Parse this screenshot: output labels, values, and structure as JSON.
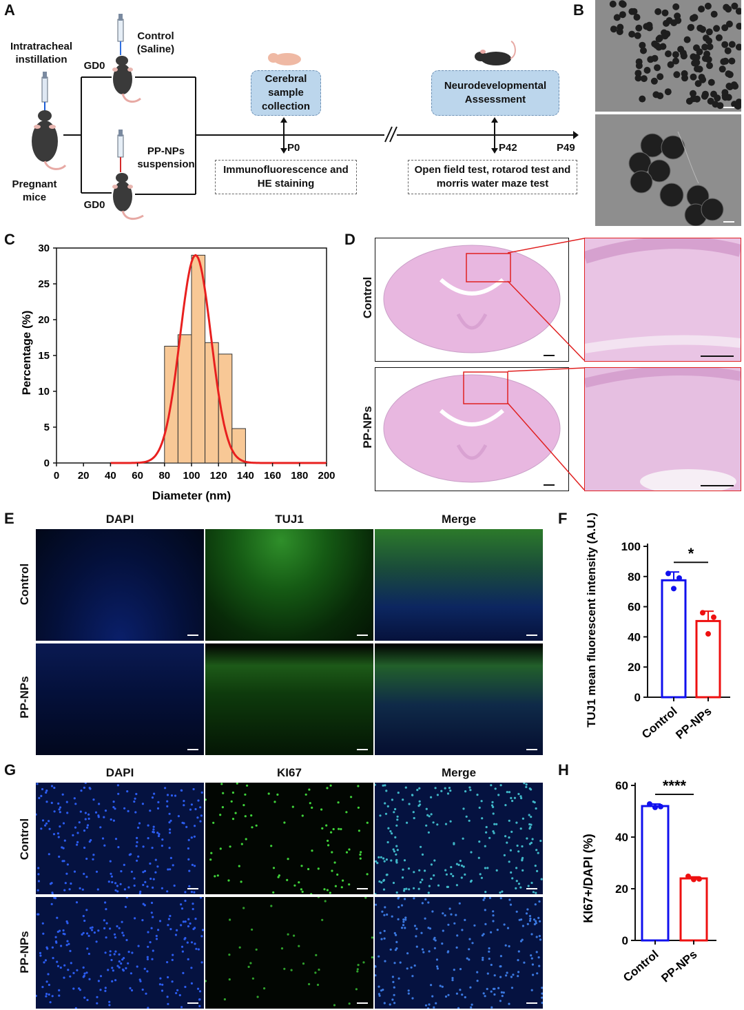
{
  "panels": {
    "A": "A",
    "B": "B",
    "C": "C",
    "D": "D",
    "E": "E",
    "F": "F",
    "G": "G",
    "H": "H"
  },
  "panelA": {
    "intratracheal": "Intratracheal instillation",
    "pregnant": "Pregnant mice",
    "gd0_top": "GD0",
    "gd0_bottom": "GD0",
    "control": "Control (Saline)",
    "ppnps": "PP-NPs suspension",
    "cerebral": "Cerebral sample collection",
    "neuro": "Neurodevelopmental Assessment",
    "p0": "P0",
    "p42": "P42",
    "p49": "P49",
    "immuno": "Immunofluorescence and HE staining",
    "tests": "Open field test, rotarod test and morris water maze test"
  },
  "panelD": {
    "control": "Control",
    "ppnps": "PP-NPs"
  },
  "panelE": {
    "dapi": "DAPI",
    "tuj1": "TUJ1",
    "merge": "Merge",
    "control": "Control",
    "ppnps": "PP-NPs"
  },
  "panelG": {
    "dapi": "DAPI",
    "ki67": "KI67",
    "merge": "Merge",
    "control": "Control",
    "ppnps": "PP-NPs"
  },
  "chart_data": [
    {
      "id": "C",
      "type": "bar",
      "xlabel": "Diameter (nm)",
      "ylabel": "Percentage (%)",
      "xlim": [
        0,
        200
      ],
      "ylim": [
        0,
        30
      ],
      "xticks": [
        0,
        20,
        40,
        60,
        80,
        100,
        120,
        140,
        160,
        180,
        200
      ],
      "yticks": [
        0,
        5,
        10,
        15,
        20,
        25,
        30
      ],
      "bins": [
        {
          "x": 85,
          "value": 16.3
        },
        {
          "x": 95,
          "value": 17.9
        },
        {
          "x": 105,
          "value": 29.0
        },
        {
          "x": 115,
          "value": 16.8
        },
        {
          "x": 125,
          "value": 15.2
        },
        {
          "x": 135,
          "value": 4.8
        }
      ],
      "bin_width": 10,
      "fit": {
        "type": "gaussian",
        "mean": 103,
        "sd": 11.5,
        "peak": 29.0,
        "color": "#e8201f"
      }
    },
    {
      "id": "F",
      "type": "bar",
      "ylabel": "TUJ1 mean fluorescent intensity (A.U.)",
      "ylim": [
        0,
        100
      ],
      "yticks": [
        0,
        20,
        40,
        60,
        80,
        100
      ],
      "categories": [
        "Control",
        "PP-NPs"
      ],
      "values": [
        77.5,
        50.5
      ],
      "errors": [
        5.5,
        6.5
      ],
      "points": [
        [
          82,
          72,
          79
        ],
        [
          56,
          42,
          53
        ]
      ],
      "colors": [
        "#1010ee",
        "#ee1010"
      ],
      "significance": "*"
    },
    {
      "id": "H",
      "type": "bar",
      "ylabel": "KI67+/DAPI (%)",
      "ylim": [
        0,
        60
      ],
      "yticks": [
        0,
        20,
        40,
        60
      ],
      "categories": [
        "Control",
        "PP-NPs"
      ],
      "values": [
        52.0,
        24.0
      ],
      "errors": [
        0.8,
        0.6
      ],
      "points": [
        [
          52.8,
          51.5,
          51.8
        ],
        [
          24.8,
          23.6,
          23.8
        ]
      ],
      "colors": [
        "#1010ee",
        "#ee1010"
      ],
      "significance": "****"
    }
  ]
}
